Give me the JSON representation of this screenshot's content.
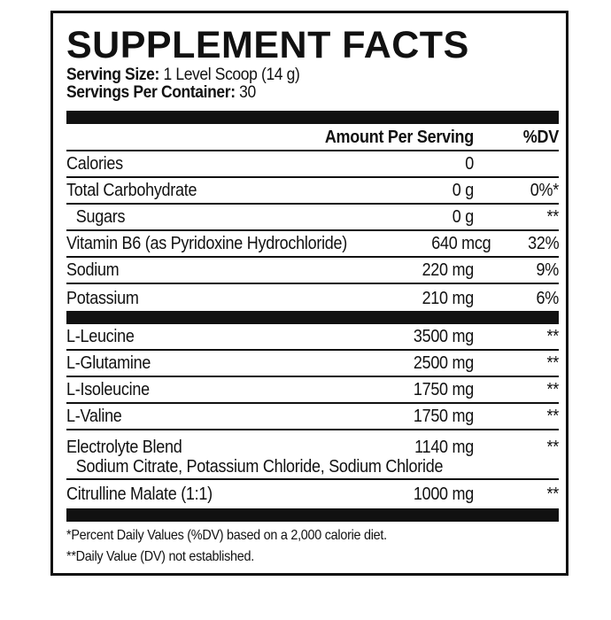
{
  "title": "SUPPLEMENT FACTS",
  "serving_size": {
    "label": "Serving Size:",
    "value": "1 Level Scoop (14 g)"
  },
  "servings_per_container": {
    "label": "Servings Per Container:",
    "value": "30"
  },
  "header": {
    "amount": "Amount Per Serving",
    "dv": "%DV"
  },
  "section1": [
    {
      "name": "Calories",
      "amount": "0",
      "dv": ""
    },
    {
      "name": "Total Carbohydrate",
      "amount": "0 g",
      "dv": "0%*"
    },
    {
      "name": "Sugars",
      "amount": "0 g",
      "dv": "**",
      "indent": true
    },
    {
      "name": "Vitamin B6 (as Pyridoxine Hydrochloride)",
      "amount": "640 mcg",
      "dv": "32%"
    },
    {
      "name": "Sodium",
      "amount": "220 mg",
      "dv": "9%"
    },
    {
      "name": "Potassium",
      "amount": "210 mg",
      "dv": "6%"
    }
  ],
  "section2": [
    {
      "name": "L-Leucine",
      "amount": "3500 mg",
      "dv": "**"
    },
    {
      "name": "L-Glutamine",
      "amount": "2500 mg",
      "dv": "**"
    },
    {
      "name": "L-Isoleucine",
      "amount": "1750 mg",
      "dv": "**"
    },
    {
      "name": "L-Valine",
      "amount": "1750 mg",
      "dv": "**"
    }
  ],
  "electrolyte": {
    "name": "Electrolyte Blend",
    "amount": "1140 mg",
    "dv": "**",
    "ingredients": "Sodium Citrate, Potassium Chloride, Sodium Chloride"
  },
  "citrulline": {
    "name": "Citrulline Malate (1:1)",
    "amount": "1000 mg",
    "dv": "**"
  },
  "footnotes": [
    "*Percent Daily Values (%DV) based on a 2,000 calorie diet.",
    "**Daily Value (DV) not established."
  ]
}
